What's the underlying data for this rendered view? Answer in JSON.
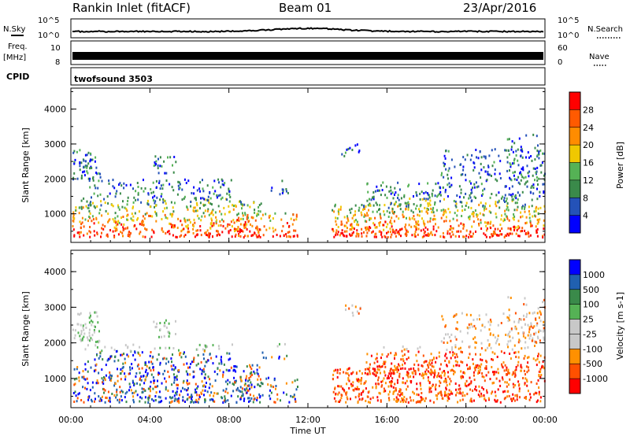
{
  "header": {
    "site": "Rankin Inlet (fitACF)",
    "beam": "Beam 01",
    "date": "23/Apr/2016"
  },
  "nsky": {
    "left_label": "N.Sky",
    "right_label": "N.Search",
    "scale_top": "10^5",
    "scale_bottom": "10^0"
  },
  "freq": {
    "label_1": "Freq.",
    "label_2": "[MHz]",
    "right_label": "Nave",
    "left_top": "10",
    "left_bottom": "8",
    "right_top": "60",
    "right_bottom": "0"
  },
  "cpid": {
    "label": "CPID",
    "value": "twofsound 3503"
  },
  "colors": {
    "power": [
      "#0000ff",
      "#2452b8",
      "#3a8a4a",
      "#55b255",
      "#f0c800",
      "#ff8c00",
      "#ff5a00",
      "#ff0000"
    ],
    "velocity": [
      "#ff0000",
      "#ff5000",
      "#ff9000",
      "#c8c8c8",
      "#c8c8c8",
      "#55b255",
      "#3a8a4a",
      "#2060b0",
      "#0000ff"
    ]
  },
  "chart_data": [
    {
      "type": "heatmap",
      "name": "power",
      "ylabel": "Slant Range [km]",
      "ylim": [
        180,
        4600
      ],
      "yticks": [
        "1000",
        "2000",
        "3000",
        "4000"
      ],
      "colorbar_label": "Power [dB]",
      "colorbar_ticks": [
        "4",
        "8",
        "12",
        "16",
        "20",
        "24",
        "28"
      ],
      "colorbar_range": [
        0,
        32
      ]
    },
    {
      "type": "heatmap",
      "name": "velocity",
      "ylabel": "Slant Range [km]",
      "ylim": [
        180,
        4600
      ],
      "yticks": [
        "1000",
        "2000",
        "3000",
        "4000"
      ],
      "colorbar_label": "Velocity [m s-1]",
      "colorbar_ticks": [
        "1000",
        "500",
        "100",
        "25",
        "-25",
        "-100",
        "-500",
        "-1000"
      ]
    }
  ],
  "xaxis": {
    "label": "Time UT",
    "ticks": [
      "00:00",
      "04:00",
      "08:00",
      "12:00",
      "16:00",
      "20:00",
      "00:00"
    ],
    "range_hours": [
      0,
      24
    ]
  }
}
